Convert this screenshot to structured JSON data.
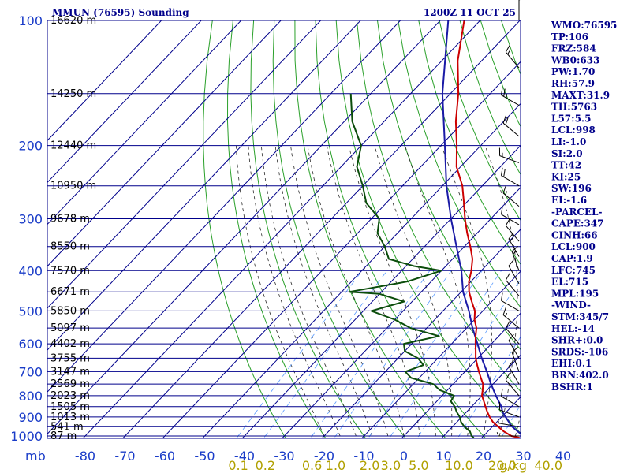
{
  "header": {
    "station": "MMUN (76595) Sounding",
    "time": "1200Z 11 OCT 25"
  },
  "indices": [
    "WMO:76595",
    "TP:106",
    "FRZ:584",
    "WB0:633",
    "PW:1.70",
    "RH:57.9",
    "MAXT:31.9",
    "TH:5763",
    "L57:5.5",
    "LCL:998",
    "LI:-1.0",
    "SI:2.0",
    "TT:42",
    "KI:25",
    "SW:196",
    "EI:-1.6",
    "-PARCEL-",
    "CAPE:347",
    "CINH:66",
    "LCL:900",
    "CAP:1.9",
    "LFC:745",
    "EL:715",
    "MPL:195",
    "-WIND-",
    "STM:345/7",
    "HEL:-14",
    "SHR+:0.0",
    "SRDS:-106",
    "EHI:0.1",
    "BRN:402.0",
    "BSHR:1"
  ],
  "chart_data": {
    "type": "skew-t",
    "pressure_unit": "mb",
    "mixing_ratio_unit": "g/kg",
    "pressure_levels": [
      100,
      200,
      300,
      400,
      500,
      600,
      700,
      800,
      900,
      1000
    ],
    "pressure_labels": [
      "100",
      "200",
      "300",
      "400",
      "500",
      "600",
      "700",
      "800",
      "900",
      "1000"
    ],
    "temperature_ticks": [
      -80,
      -70,
      -60,
      -50,
      -40,
      -30,
      -20,
      -10,
      0,
      10,
      20,
      30,
      40
    ],
    "temperature_labels": [
      "-80",
      "-70",
      "-60",
      "-50",
      "-40",
      "-30",
      "-20",
      "-10",
      "0",
      "10",
      "20",
      "30",
      "40"
    ],
    "mixing_ratio_labels": [
      "0.1",
      "0.2",
      "0.6",
      "1.0",
      "2.0",
      "3.0",
      "5.0",
      "10.0",
      "20.0",
      "40.0"
    ],
    "height_labels": [
      {
        "p": 100,
        "label": "16620 m"
      },
      {
        "p": 150,
        "label": "14250 m"
      },
      {
        "p": 200,
        "label": "12440 m"
      },
      {
        "p": 250,
        "label": "10950 m"
      },
      {
        "p": 300,
        "label": "9678 m"
      },
      {
        "p": 350,
        "label": "8550 m"
      },
      {
        "p": 400,
        "label": "7570 m"
      },
      {
        "p": 450,
        "label": "6671 m"
      },
      {
        "p": 500,
        "label": "5850 m"
      },
      {
        "p": 550,
        "label": "5097 m"
      },
      {
        "p": 600,
        "label": "4402 m"
      },
      {
        "p": 650,
        "label": "3755 m"
      },
      {
        "p": 700,
        "label": "3147 m"
      },
      {
        "p": 750,
        "label": "2569 m"
      },
      {
        "p": 800,
        "label": "2023 m"
      },
      {
        "p": 850,
        "label": "1505 m"
      },
      {
        "p": 900,
        "label": "1013 m"
      },
      {
        "p": 950,
        "label": "541 m"
      },
      {
        "p": 1000,
        "label": "87 m"
      }
    ],
    "temperature_profile": [
      [
        1010,
        29.5
      ],
      [
        1000,
        27
      ],
      [
        975,
        24
      ],
      [
        950,
        21.5
      ],
      [
        925,
        19
      ],
      [
        900,
        17
      ],
      [
        875,
        15.2
      ],
      [
        850,
        13.5
      ],
      [
        825,
        11.8
      ],
      [
        800,
        10
      ],
      [
        775,
        8.8
      ],
      [
        750,
        7.5
      ],
      [
        725,
        5.5
      ],
      [
        700,
        3.5
      ],
      [
        675,
        1.5
      ],
      [
        650,
        -0.5
      ],
      [
        625,
        -2.2
      ],
      [
        600,
        -4
      ],
      [
        575,
        -5.8
      ],
      [
        550,
        -7.5
      ],
      [
        525,
        -10
      ],
      [
        500,
        -12
      ],
      [
        475,
        -15
      ],
      [
        450,
        -18
      ],
      [
        425,
        -20.5
      ],
      [
        400,
        -22.5
      ],
      [
        375,
        -25
      ],
      [
        350,
        -28.5
      ],
      [
        325,
        -32.5
      ],
      [
        300,
        -36.5
      ],
      [
        275,
        -40.5
      ],
      [
        250,
        -45
      ],
      [
        225,
        -51
      ],
      [
        200,
        -56
      ],
      [
        175,
        -62
      ],
      [
        150,
        -68
      ],
      [
        125,
        -76
      ],
      [
        100,
        -84
      ]
    ],
    "dewpoint_profile": [
      [
        1010,
        18
      ],
      [
        1000,
        17
      ],
      [
        975,
        15.5
      ],
      [
        950,
        13
      ],
      [
        925,
        11
      ],
      [
        900,
        9.5
      ],
      [
        875,
        7.5
      ],
      [
        850,
        5.8
      ],
      [
        825,
        3.5
      ],
      [
        800,
        3
      ],
      [
        775,
        -2
      ],
      [
        750,
        -5
      ],
      [
        725,
        -12
      ],
      [
        700,
        -15
      ],
      [
        675,
        -12
      ],
      [
        650,
        -15
      ],
      [
        625,
        -20
      ],
      [
        600,
        -22
      ],
      [
        575,
        -15
      ],
      [
        550,
        -24
      ],
      [
        525,
        -30
      ],
      [
        500,
        -38
      ],
      [
        475,
        -32
      ],
      [
        455,
        -40
      ],
      [
        450,
        -48
      ],
      [
        425,
        -36
      ],
      [
        400,
        -30
      ],
      [
        390,
        -38
      ],
      [
        375,
        -46
      ],
      [
        350,
        -50
      ],
      [
        325,
        -55
      ],
      [
        300,
        -58
      ],
      [
        275,
        -65
      ],
      [
        250,
        -70
      ],
      [
        225,
        -76
      ],
      [
        200,
        -80
      ],
      [
        175,
        -88
      ],
      [
        150,
        -95
      ]
    ],
    "parcel_profile": [
      [
        1000,
        30
      ],
      [
        975,
        27.5
      ],
      [
        950,
        25
      ],
      [
        925,
        23
      ],
      [
        900,
        21
      ],
      [
        875,
        19
      ],
      [
        850,
        17.5
      ],
      [
        800,
        13.5
      ],
      [
        750,
        9.5
      ],
      [
        700,
        5.5
      ],
      [
        650,
        1
      ],
      [
        600,
        -3.5
      ],
      [
        550,
        -8.5
      ],
      [
        500,
        -13.5
      ],
      [
        450,
        -19.5
      ],
      [
        400,
        -25
      ],
      [
        350,
        -32
      ],
      [
        300,
        -40
      ],
      [
        250,
        -49
      ],
      [
        200,
        -59
      ],
      [
        150,
        -72
      ],
      [
        100,
        -88
      ]
    ],
    "wind_barbs": [
      {
        "p": 100,
        "dir": 0,
        "spd": 10
      },
      {
        "p": 130,
        "dir": 320,
        "spd": 15
      },
      {
        "p": 160,
        "dir": 300,
        "spd": 25
      },
      {
        "p": 190,
        "dir": 310,
        "spd": 20
      },
      {
        "p": 220,
        "dir": 290,
        "spd": 15
      },
      {
        "p": 250,
        "dir": 300,
        "spd": 20
      },
      {
        "p": 280,
        "dir": 310,
        "spd": 15
      },
      {
        "p": 310,
        "dir": 300,
        "spd": 10
      },
      {
        "p": 340,
        "dir": 320,
        "spd": 10
      },
      {
        "p": 370,
        "dir": 330,
        "spd": 15
      },
      {
        "p": 400,
        "dir": 340,
        "spd": 15
      },
      {
        "p": 430,
        "dir": 330,
        "spd": 10
      },
      {
        "p": 460,
        "dir": 320,
        "spd": 10
      },
      {
        "p": 500,
        "dir": 300,
        "spd": 10
      },
      {
        "p": 550,
        "dir": 310,
        "spd": 15
      },
      {
        "p": 600,
        "dir": 320,
        "spd": 10
      },
      {
        "p": 650,
        "dir": 330,
        "spd": 10
      },
      {
        "p": 700,
        "dir": 340,
        "spd": 10
      },
      {
        "p": 750,
        "dir": 330,
        "spd": 10
      },
      {
        "p": 800,
        "dir": 320,
        "spd": 10
      },
      {
        "p": 850,
        "dir": 300,
        "spd": 10
      },
      {
        "p": 900,
        "dir": 290,
        "spd": 10
      },
      {
        "p": 950,
        "dir": 280,
        "spd": 5
      },
      {
        "p": 1000,
        "dir": 270,
        "spd": 5
      }
    ],
    "colors": {
      "isobar": "#00008b",
      "isotherm": "#00008b",
      "dry_adiabat": "#2aa02a",
      "moist_adiabat": "#2b2b2b",
      "mixing_ratio": "#5a9bff",
      "temperature": "#cc0000",
      "dewpoint": "#0b4d0b",
      "parcel": "#1a1aa6",
      "labels": "#1a3cc8",
      "mixing_labels": "#b0a000"
    }
  }
}
